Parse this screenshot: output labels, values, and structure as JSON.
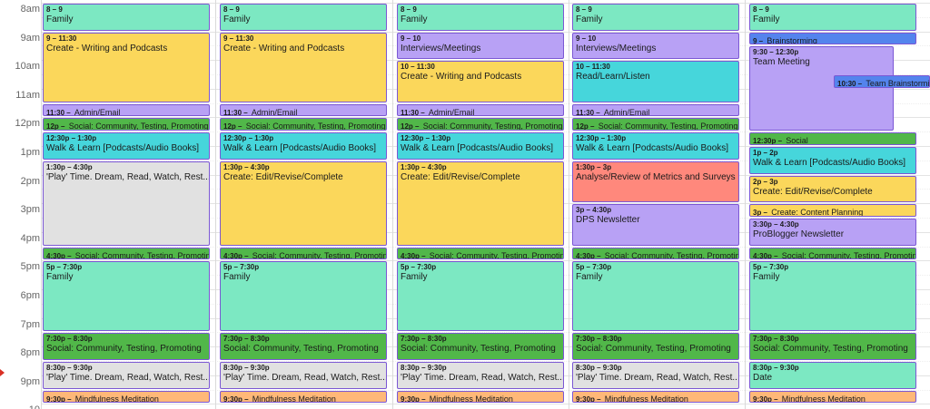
{
  "colors": {
    "family": "#7ce8c2",
    "create": "#fbd75b",
    "admin": "#b8a1f5",
    "social": "#51b749",
    "walk": "#46d6db",
    "play": "#e1e1e1",
    "meditation": "#ffb878",
    "analyse": "#ff887c",
    "brainstorm": "#5484ed"
  },
  "time_labels": [
    "8am",
    "9am",
    "10am",
    "11am",
    "12pm",
    "1pm",
    "2pm",
    "3pm",
    "4pm",
    "5pm",
    "6pm",
    "7pm",
    "8pm",
    "9pm",
    "10"
  ],
  "days": [
    {
      "events": [
        {
          "start": 8,
          "end": 9,
          "time": "8 – 9",
          "title": "Family",
          "color": "family"
        },
        {
          "start": 9,
          "end": 11.5,
          "time": "9 – 11:30",
          "title": "Create - Writing and Podcasts",
          "color": "create"
        },
        {
          "start": 11.5,
          "end": 12,
          "time": "11:30 – ",
          "title": "Admin/Email",
          "color": "admin"
        },
        {
          "start": 12,
          "end": 12.5,
          "time": "12p – ",
          "title": "Social: Community, Testing, Promoting",
          "color": "social"
        },
        {
          "start": 12.5,
          "end": 13.5,
          "time": "12:30p – 1:30p",
          "title": "Walk & Learn [Podcasts/Audio Books]",
          "color": "walk"
        },
        {
          "start": 13.5,
          "end": 16.5,
          "time": "1:30p – 4:30p",
          "title": "'Play' Time. Dream, Read, Watch, Rest....",
          "color": "play"
        },
        {
          "start": 16.5,
          "end": 17,
          "time": "4:30p – ",
          "title": "Social: Community, Testing, Promoting",
          "color": "social"
        },
        {
          "start": 17,
          "end": 19.5,
          "time": "5p – 7:30p",
          "title": "Family",
          "color": "family"
        },
        {
          "start": 19.5,
          "end": 20.5,
          "time": "7:30p – 8:30p",
          "title": "Social: Community, Testing, Promoting",
          "color": "social"
        },
        {
          "start": 20.5,
          "end": 21.5,
          "time": "8:30p – 9:30p",
          "title": "'Play' Time. Dream, Read, Watch, Rest....",
          "color": "play"
        },
        {
          "start": 21.5,
          "end": 22,
          "time": "9:30p – ",
          "title": "Mindfulness Meditation",
          "color": "meditation"
        }
      ]
    },
    {
      "events": [
        {
          "start": 8,
          "end": 9,
          "time": "8 – 9",
          "title": "Family",
          "color": "family"
        },
        {
          "start": 9,
          "end": 11.5,
          "time": "9 – 11:30",
          "title": "Create - Writing and Podcasts",
          "color": "create"
        },
        {
          "start": 11.5,
          "end": 12,
          "time": "11:30 – ",
          "title": "Admin/Email",
          "color": "admin"
        },
        {
          "start": 12,
          "end": 12.5,
          "time": "12p – ",
          "title": "Social: Community, Testing, Promoting",
          "color": "social"
        },
        {
          "start": 12.5,
          "end": 13.5,
          "time": "12:30p – 1:30p",
          "title": "Walk & Learn [Podcasts/Audio Books]",
          "color": "walk"
        },
        {
          "start": 13.5,
          "end": 16.5,
          "time": "1:30p – 4:30p",
          "title": "Create: Edit/Revise/Complete",
          "color": "create"
        },
        {
          "start": 16.5,
          "end": 17,
          "time": "4:30p – ",
          "title": "Social: Community, Testing, Promoting",
          "color": "social"
        },
        {
          "start": 17,
          "end": 19.5,
          "time": "5p – 7:30p",
          "title": "Family",
          "color": "family"
        },
        {
          "start": 19.5,
          "end": 20.5,
          "time": "7:30p – 8:30p",
          "title": "Social: Community, Testing, Promoting",
          "color": "social"
        },
        {
          "start": 20.5,
          "end": 21.5,
          "time": "8:30p – 9:30p",
          "title": "'Play' Time. Dream, Read, Watch, Rest....",
          "color": "play"
        },
        {
          "start": 21.5,
          "end": 22,
          "time": "9:30p – ",
          "title": "Mindfulness Meditation",
          "color": "meditation"
        }
      ]
    },
    {
      "events": [
        {
          "start": 8,
          "end": 9,
          "time": "8 – 9",
          "title": "Family",
          "color": "family"
        },
        {
          "start": 9,
          "end": 10,
          "time": "9 – 10",
          "title": "Interviews/Meetings",
          "color": "admin"
        },
        {
          "start": 10,
          "end": 11.5,
          "time": "10 – 11:30",
          "title": "Create - Writing and Podcasts",
          "color": "create"
        },
        {
          "start": 11.5,
          "end": 12,
          "time": "11:30 – ",
          "title": "Admin/Email",
          "color": "admin"
        },
        {
          "start": 12,
          "end": 12.5,
          "time": "12p – ",
          "title": "Social: Community, Testing, Promoting",
          "color": "social"
        },
        {
          "start": 12.5,
          "end": 13.5,
          "time": "12:30p – 1:30p",
          "title": "Walk & Learn [Podcasts/Audio Books]",
          "color": "walk"
        },
        {
          "start": 13.5,
          "end": 16.5,
          "time": "1:30p – 4:30p",
          "title": "Create: Edit/Revise/Complete",
          "color": "create"
        },
        {
          "start": 16.5,
          "end": 17,
          "time": "4:30p – ",
          "title": "Social: Community, Testing, Promoting",
          "color": "social"
        },
        {
          "start": 17,
          "end": 19.5,
          "time": "5p – 7:30p",
          "title": "Family",
          "color": "family"
        },
        {
          "start": 19.5,
          "end": 20.5,
          "time": "7:30p – 8:30p",
          "title": "Social: Community, Testing, Promoting",
          "color": "social"
        },
        {
          "start": 20.5,
          "end": 21.5,
          "time": "8:30p – 9:30p",
          "title": "'Play' Time. Dream, Read, Watch, Rest....",
          "color": "play"
        },
        {
          "start": 21.5,
          "end": 22,
          "time": "9:30p – ",
          "title": "Mindfulness Meditation",
          "color": "meditation"
        }
      ]
    },
    {
      "events": [
        {
          "start": 8,
          "end": 9,
          "time": "8 – 9",
          "title": "Family",
          "color": "family"
        },
        {
          "start": 9,
          "end": 10,
          "time": "9 – 10",
          "title": "Interviews/Meetings",
          "color": "admin"
        },
        {
          "start": 10,
          "end": 11.5,
          "time": "10 – 11:30",
          "title": "Read/Learn/Listen",
          "color": "walk"
        },
        {
          "start": 11.5,
          "end": 12,
          "time": "11:30 – ",
          "title": "Admin/Email",
          "color": "admin"
        },
        {
          "start": 12,
          "end": 12.5,
          "time": "12p – ",
          "title": "Social: Community, Testing, Promoting",
          "color": "social"
        },
        {
          "start": 12.5,
          "end": 13.5,
          "time": "12:30p – 1:30p",
          "title": "Walk & Learn [Podcasts/Audio Books]",
          "color": "walk"
        },
        {
          "start": 13.5,
          "end": 15,
          "time": "1:30p – 3p",
          "title": "Analyse/Review of Metrics and Surveys",
          "color": "analyse"
        },
        {
          "start": 15,
          "end": 16.5,
          "time": "3p – 4:30p",
          "title": "DPS Newsletter",
          "color": "admin"
        },
        {
          "start": 16.5,
          "end": 17,
          "time": "4:30p – ",
          "title": "Social: Community, Testing, Promoting",
          "color": "social"
        },
        {
          "start": 17,
          "end": 19.5,
          "time": "5p – 7:30p",
          "title": "Family",
          "color": "family"
        },
        {
          "start": 19.5,
          "end": 20.5,
          "time": "7:30p – 8:30p",
          "title": "Social: Community, Testing, Promoting",
          "color": "social"
        },
        {
          "start": 20.5,
          "end": 21.5,
          "time": "8:30p – 9:30p",
          "title": "'Play' Time. Dream, Read, Watch, Rest....",
          "color": "play"
        },
        {
          "start": 21.5,
          "end": 22,
          "time": "9:30p – ",
          "title": "Mindfulness Meditation",
          "color": "meditation"
        }
      ]
    },
    {
      "events": [
        {
          "start": 8,
          "end": 9,
          "time": "8 – 9",
          "title": "Family",
          "color": "family"
        },
        {
          "start": 9,
          "end": 9.5,
          "time": "9 – ",
          "title": "Brainstorming",
          "color": "brainstorm"
        },
        {
          "start": 9.5,
          "end": 12.5,
          "time": "9:30 – 12:30p",
          "title": "Team Meeting",
          "color": "admin",
          "narrow": true
        },
        {
          "start": 10.5,
          "end": 11,
          "time": "10:30 – ",
          "title": "Team Brainstorming",
          "color": "brainstorm",
          "overlap": true
        },
        {
          "start": 12.5,
          "end": 13,
          "time": "12:30p – ",
          "title": "Social",
          "color": "social"
        },
        {
          "start": 13,
          "end": 14,
          "time": "1p – 2p",
          "title": "Walk & Learn [Podcasts/Audio Books]",
          "color": "walk"
        },
        {
          "start": 14,
          "end": 15,
          "time": "2p – 3p",
          "title": "Create: Edit/Revise/Complete",
          "color": "create"
        },
        {
          "start": 15,
          "end": 15.5,
          "time": "3p – ",
          "title": "Create: Content Planning",
          "color": "create"
        },
        {
          "start": 15.5,
          "end": 16.5,
          "time": "3:30p – 4:30p",
          "title": "ProBlogger Newsletter",
          "color": "admin"
        },
        {
          "start": 16.5,
          "end": 17,
          "time": "4:30p – ",
          "title": "Social: Community, Testing, Promoting",
          "color": "social"
        },
        {
          "start": 17,
          "end": 19.5,
          "time": "5p – 7:30p",
          "title": "Family",
          "color": "family"
        },
        {
          "start": 19.5,
          "end": 20.5,
          "time": "7:30p – 8:30p",
          "title": "Social: Community, Testing, Promoting",
          "color": "social"
        },
        {
          "start": 20.5,
          "end": 21.5,
          "time": "8:30p – 9:30p",
          "title": "Date",
          "color": "family"
        },
        {
          "start": 21.5,
          "end": 22,
          "time": "9:30p – ",
          "title": "Mindfulness Meditation",
          "color": "meditation"
        }
      ]
    }
  ]
}
